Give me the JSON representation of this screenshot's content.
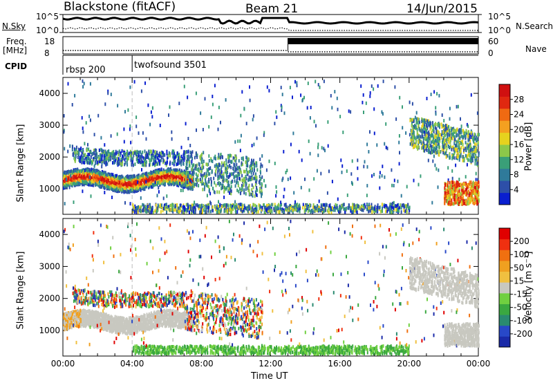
{
  "header": {
    "station": "Blackstone (fitACF)",
    "beam": "Beam 21",
    "date": "14/Jun/2015"
  },
  "top_panel": {
    "left_label": "N.Sky",
    "left_ticks": [
      "10^5",
      "10^0"
    ],
    "right_ticks": [
      "10^5",
      "10^0"
    ],
    "right_label": "N.Search",
    "freq_label": "Freq.",
    "freq_unit": "[MHz]",
    "freq_ticks": [
      "18",
      "8"
    ],
    "nave_ticks": [
      "60",
      "0"
    ],
    "nave_label": "Nave",
    "cpid_label": "CPID",
    "cpid_segments": [
      {
        "start_hour": 0,
        "name": "rbsp 200"
      },
      {
        "start_hour": 4,
        "name": "twofsound 3501"
      }
    ]
  },
  "chart_data": [
    {
      "type": "heatmap",
      "name": "power",
      "ylabel": "Slant Range [km]",
      "ylim": [
        200,
        4500
      ],
      "yticks": [
        1000,
        2000,
        3000,
        4000
      ],
      "xlim": [
        0,
        24
      ],
      "colorbar_label": "Power [dB]",
      "colorbar_ticks": [
        "4",
        "8",
        "12",
        "16",
        "20",
        "24",
        "28"
      ],
      "colorbar_colors": [
        "#0a1fd0",
        "#2d4fa8",
        "#2f7a9a",
        "#3a9f78",
        "#8cc84a",
        "#e6d21e",
        "#f4a020",
        "#f06a12",
        "#e02810",
        "#d01010"
      ]
    },
    {
      "type": "heatmap",
      "name": "velocity",
      "ylabel": "Slant Range [km]",
      "ylim": [
        200,
        4500
      ],
      "yticks": [
        1000,
        2000,
        3000,
        4000
      ],
      "xlim": [
        0,
        24
      ],
      "xticks": [
        "00:00",
        "04:00",
        "08:00",
        "12:00",
        "16:00",
        "20:00",
        "00:00"
      ],
      "xlabel": "Time UT",
      "colorbar_label": "Velocity [m s⁻¹]",
      "colorbar_ticks": [
        "200",
        "100",
        "50",
        "15",
        "-15",
        "-50",
        "-100",
        "-200"
      ],
      "colorbar_colors": [
        "#1a2aa8",
        "#2848c8",
        "#2a8a70",
        "#3aa840",
        "#70d040",
        "#c8c8c0",
        "#f0c040",
        "#f0a020",
        "#f07010",
        "#f03010",
        "#e00000"
      ]
    }
  ]
}
